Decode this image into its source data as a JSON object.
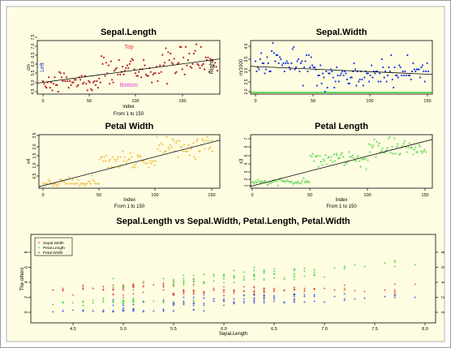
{
  "chart_data": [
    {
      "type": "scatter",
      "title": "Sepal.Length",
      "xlabel": "index",
      "xlabel2": "From 1 to 150",
      "ylabel": "cm",
      "xlim": [
        1,
        150
      ],
      "ylim": [
        4.3,
        8.0
      ],
      "xticks": [
        "0",
        "50",
        "100",
        "150"
      ],
      "yticks": [
        "4.5",
        "5.0",
        "5.5",
        "6.0",
        "6.5",
        "7.0",
        "7.5"
      ],
      "annotations": {
        "top": "Top",
        "bottom": "Bottom",
        "left": "Left",
        "right": "Right"
      },
      "colors": {
        "points": "#b22222",
        "line": "#000000",
        "top": "#e04040",
        "bottom": "#e040e0",
        "left": "#1f3cdc",
        "right": "#000000",
        "background": "#fffde1"
      },
      "x_from": 1,
      "values": [
        5.1,
        4.9,
        4.7,
        4.6,
        5.0,
        5.4,
        4.6,
        5.0,
        4.4,
        4.9,
        5.4,
        4.8,
        4.8,
        4.3,
        5.8,
        5.7,
        5.4,
        5.1,
        5.7,
        5.1,
        5.4,
        5.1,
        4.6,
        5.1,
        4.8,
        5.0,
        5.0,
        5.2,
        5.2,
        4.7,
        4.8,
        5.4,
        5.2,
        5.5,
        4.9,
        5.0,
        5.5,
        4.9,
        4.4,
        5.1,
        5.0,
        4.5,
        4.4,
        5.0,
        5.1,
        4.8,
        5.1,
        4.6,
        5.3,
        5.0,
        7.0,
        6.4,
        6.9,
        5.5,
        6.5,
        5.7,
        6.3,
        4.9,
        6.6,
        5.2,
        5.0,
        5.9,
        6.0,
        6.1,
        5.6,
        6.7,
        5.6,
        5.8,
        6.2,
        5.6,
        5.9,
        6.1,
        6.3,
        6.1,
        6.4,
        6.6,
        6.8,
        6.7,
        6.0,
        5.7,
        5.5,
        5.5,
        5.8,
        6.0,
        5.4,
        6.0,
        6.7,
        6.3,
        5.6,
        5.5,
        5.5,
        6.1,
        5.8,
        5.0,
        5.6,
        5.7,
        5.7,
        6.2,
        5.1,
        5.7,
        6.3,
        5.8,
        7.1,
        6.3,
        6.5,
        7.6,
        4.9,
        7.3,
        6.7,
        7.2,
        6.5,
        6.4,
        6.8,
        5.7,
        5.8,
        6.4,
        6.5,
        7.7,
        7.7,
        6.0,
        6.9,
        5.6,
        7.7,
        6.3,
        6.7,
        7.2,
        6.2,
        6.1,
        6.4,
        7.2,
        7.4,
        7.9,
        6.4,
        6.3,
        6.1,
        7.7,
        6.3,
        6.4,
        6.0,
        6.9,
        6.7,
        6.9,
        5.8,
        6.8,
        6.7,
        6.7,
        6.3,
        6.5,
        6.2,
        5.9
      ],
      "trend": [
        4.95,
        6.79
      ]
    },
    {
      "type": "scatter",
      "title": "Sepal.Width",
      "xlabel": "",
      "ylabel": "m/1000",
      "xlim": [
        1,
        150
      ],
      "ylim": [
        2.0,
        4.4
      ],
      "xticks": [
        "0",
        "50",
        "100",
        "150"
      ],
      "yticks": [
        "2.0",
        "2.5",
        "3.0",
        "3.5",
        "4.0"
      ],
      "colors": {
        "points": "#1f3cdc",
        "line": "#000000",
        "hline": "#33cc33",
        "background": "#fffde1"
      },
      "hline": 2.0,
      "x_from": 1,
      "values": [
        3.5,
        3.0,
        3.2,
        3.1,
        3.6,
        3.9,
        3.4,
        3.4,
        2.9,
        3.1,
        3.7,
        3.4,
        3.0,
        3.0,
        4.0,
        4.4,
        3.9,
        3.5,
        3.8,
        3.8,
        3.4,
        3.7,
        3.6,
        3.3,
        3.4,
        3.0,
        3.4,
        3.5,
        3.4,
        3.2,
        3.1,
        3.4,
        4.1,
        4.2,
        3.1,
        3.2,
        3.5,
        3.6,
        3.0,
        3.4,
        3.5,
        2.3,
        3.2,
        3.5,
        3.8,
        3.0,
        3.8,
        3.2,
        3.7,
        3.3,
        3.2,
        3.2,
        3.1,
        2.3,
        2.8,
        2.8,
        3.3,
        2.4,
        2.9,
        2.7,
        2.0,
        3.0,
        2.2,
        2.9,
        2.9,
        3.1,
        3.0,
        2.7,
        2.2,
        2.5,
        3.2,
        2.8,
        2.5,
        2.8,
        2.9,
        3.0,
        2.8,
        3.0,
        2.9,
        2.6,
        2.4,
        2.4,
        2.7,
        2.7,
        3.0,
        3.4,
        3.1,
        2.3,
        3.0,
        2.5,
        2.6,
        3.0,
        2.6,
        2.3,
        2.7,
        3.0,
        2.9,
        2.9,
        2.5,
        2.8,
        3.3,
        2.7,
        3.0,
        2.9,
        3.0,
        3.0,
        2.5,
        2.9,
        2.5,
        3.6,
        3.2,
        2.7,
        3.0,
        2.5,
        2.8,
        3.2,
        3.0,
        3.8,
        2.6,
        2.2,
        3.2,
        2.8,
        2.8,
        2.7,
        3.3,
        3.2,
        2.8,
        3.0,
        2.8,
        3.0,
        2.8,
        3.8,
        2.8,
        2.8,
        2.6,
        3.0,
        3.4,
        3.1,
        3.0,
        3.1,
        3.1,
        3.1,
        2.7,
        3.2,
        3.3,
        3.0,
        2.5,
        3.0,
        3.4,
        3.0
      ],
      "trend": [
        3.25,
        2.85
      ]
    },
    {
      "type": "scatter",
      "title": "Petal Width",
      "xlabel": "Index",
      "xlabel2": "From 1 to 150",
      "ylabel": "x4",
      "xlim": [
        1,
        150
      ],
      "ylim": [
        0.1,
        2.5
      ],
      "xticks": [
        "0",
        "50",
        "100",
        "150"
      ],
      "yticks": [
        "0.5",
        "1.0",
        "1.5",
        "2.0",
        "2.5"
      ],
      "colors": {
        "points": "#e6a817",
        "line": "#000000",
        "background": "#fffde1"
      },
      "x_from": 1,
      "values": [
        0.2,
        0.2,
        0.2,
        0.2,
        0.2,
        0.4,
        0.3,
        0.2,
        0.2,
        0.1,
        0.2,
        0.2,
        0.1,
        0.1,
        0.2,
        0.4,
        0.4,
        0.3,
        0.3,
        0.3,
        0.2,
        0.4,
        0.2,
        0.5,
        0.2,
        0.2,
        0.4,
        0.2,
        0.2,
        0.2,
        0.2,
        0.4,
        0.1,
        0.2,
        0.2,
        0.2,
        0.2,
        0.1,
        0.2,
        0.2,
        0.3,
        0.3,
        0.2,
        0.6,
        0.4,
        0.3,
        0.2,
        0.2,
        0.2,
        0.2,
        1.4,
        1.5,
        1.5,
        1.3,
        1.5,
        1.3,
        1.6,
        1.0,
        1.3,
        1.4,
        1.0,
        1.5,
        1.0,
        1.4,
        1.3,
        1.4,
        1.5,
        1.0,
        1.5,
        1.1,
        1.8,
        1.3,
        1.5,
        1.2,
        1.3,
        1.4,
        1.4,
        1.7,
        1.5,
        1.0,
        1.1,
        1.0,
        1.2,
        1.6,
        1.5,
        1.6,
        1.5,
        1.3,
        1.3,
        1.3,
        1.2,
        1.4,
        1.2,
        1.0,
        1.3,
        1.2,
        1.3,
        1.3,
        1.1,
        1.3,
        2.5,
        1.9,
        2.1,
        1.8,
        2.2,
        2.1,
        1.7,
        1.8,
        1.8,
        2.5,
        2.0,
        1.9,
        2.1,
        2.0,
        2.4,
        2.3,
        1.8,
        2.2,
        2.3,
        1.5,
        2.3,
        2.0,
        2.0,
        1.8,
        2.1,
        1.8,
        1.8,
        1.8,
        2.1,
        1.6,
        1.9,
        2.0,
        2.2,
        1.5,
        1.4,
        2.3,
        2.4,
        1.8,
        1.8,
        2.1,
        2.4,
        2.3,
        1.9,
        2.3,
        2.5,
        2.3,
        1.9,
        2.0,
        2.3,
        1.8
      ],
      "trend": [
        0.05,
        2.35
      ]
    },
    {
      "type": "scatter",
      "title": "Petal Length",
      "xlabel": "Index",
      "xlabel2": "From 1 to 150",
      "ylabel": "x3",
      "xlim": [
        1,
        150
      ],
      "ylim": [
        1.0,
        6.9
      ],
      "xticks": [
        "0",
        "50",
        "100",
        "150"
      ],
      "yticks": [
        "1",
        "2",
        "3",
        "4",
        "5",
        "6",
        "7"
      ],
      "colors": {
        "points": "#2ecc2e",
        "line": "#000000",
        "background": "#fffde1"
      },
      "x_from": 1,
      "values": [
        1.4,
        1.4,
        1.3,
        1.5,
        1.4,
        1.7,
        1.4,
        1.5,
        1.4,
        1.5,
        1.5,
        1.6,
        1.4,
        1.1,
        1.2,
        1.5,
        1.3,
        1.4,
        1.7,
        1.5,
        1.7,
        1.5,
        1.0,
        1.7,
        1.9,
        1.6,
        1.6,
        1.5,
        1.4,
        1.6,
        1.6,
        1.5,
        1.5,
        1.4,
        1.5,
        1.2,
        1.3,
        1.4,
        1.3,
        1.5,
        1.3,
        1.3,
        1.3,
        1.6,
        1.9,
        1.4,
        1.6,
        1.4,
        1.5,
        1.4,
        4.7,
        4.5,
        4.9,
        4.0,
        4.6,
        4.5,
        4.7,
        3.3,
        4.6,
        3.9,
        3.5,
        4.2,
        4.0,
        4.7,
        3.6,
        4.4,
        4.5,
        4.1,
        4.5,
        3.9,
        4.8,
        4.0,
        4.9,
        4.7,
        4.3,
        4.4,
        4.8,
        5.0,
        4.5,
        3.5,
        3.8,
        3.7,
        3.9,
        5.1,
        4.5,
        4.5,
        4.7,
        4.4,
        4.1,
        4.0,
        4.4,
        4.6,
        4.0,
        3.3,
        4.2,
        4.2,
        4.2,
        4.3,
        3.0,
        4.1,
        6.0,
        5.1,
        5.9,
        5.6,
        5.8,
        6.6,
        4.5,
        6.3,
        5.8,
        6.1,
        5.1,
        5.3,
        5.5,
        5.0,
        5.1,
        5.3,
        5.5,
        6.7,
        6.9,
        5.0,
        5.7,
        4.9,
        6.7,
        4.9,
        5.7,
        6.0,
        4.8,
        4.9,
        5.6,
        5.8,
        6.1,
        6.4,
        5.6,
        5.1,
        5.6,
        6.1,
        5.6,
        5.5,
        4.8,
        5.4,
        5.6,
        5.1,
        5.1,
        5.9,
        5.7,
        5.2,
        5.0,
        5.2,
        5.4,
        5.1
      ],
      "trend": [
        0.93,
        6.62
      ]
    },
    {
      "type": "scatter",
      "title": "Sepal.Length vs Sepal.Width, Petal.Length, Petal.Width",
      "xlabel": "Sepal.Length",
      "ylabel": "The others",
      "xlim": [
        4.3,
        7.9
      ],
      "ylim": [
        0,
        8
      ],
      "xticks": [
        "4.5",
        "5.0",
        "5.5",
        "6.0",
        "6.5",
        "7.0",
        "7.5",
        "8.0"
      ],
      "yticks": [
        "0",
        "2",
        "4",
        "6",
        "8"
      ],
      "legend_position": "top-left",
      "series": [
        {
          "name": "Sepal.Width",
          "color": "#d22d2d",
          "source": 1
        },
        {
          "name": "Petal.Length",
          "color": "#2ecc2e",
          "source": 3
        },
        {
          "name": "Petal.Width",
          "color": "#1f3cdc",
          "source": 2
        }
      ],
      "colors": {
        "background": "#fffde1"
      }
    }
  ]
}
